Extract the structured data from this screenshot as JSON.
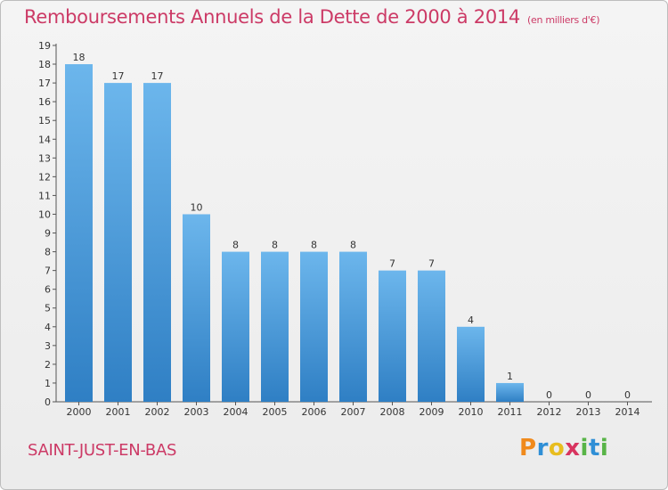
{
  "header": {
    "title": "Remboursements Annuels de la Dette de 2000 à 2014",
    "unit": "(en milliers d'€)"
  },
  "footer": {
    "commune": "SAINT-JUST-EN-BAS",
    "logo_letters": [
      "P",
      "r",
      "o",
      "x",
      "i",
      "t",
      "i"
    ],
    "logo_colors": [
      "#f08a1c",
      "#2f8fd6",
      "#e8bd1f",
      "#d8345f",
      "#58b447",
      "#2f8fd6",
      "#58b447"
    ]
  },
  "chart_data": {
    "type": "bar",
    "title": "Remboursements Annuels de la Dette de 2000 à 2014",
    "subtitle": "(en milliers d'€)",
    "categories": [
      "2000",
      "2001",
      "2002",
      "2003",
      "2004",
      "2005",
      "2006",
      "2007",
      "2008",
      "2009",
      "2010",
      "2011",
      "2012",
      "2013",
      "2014"
    ],
    "values": [
      18,
      17,
      17,
      10,
      8,
      8,
      8,
      8,
      7,
      7,
      4,
      1,
      0,
      0,
      0
    ],
    "data_labels": [
      "18",
      "17",
      "17",
      "10",
      "8",
      "8",
      "8",
      "8",
      "7",
      "7",
      "4",
      "1",
      "0",
      "0",
      "0"
    ],
    "ylim": [
      0,
      19
    ],
    "yticks": [
      "0",
      "1",
      "2",
      "3",
      "4",
      "5",
      "6",
      "7",
      "8",
      "9",
      "10",
      "11",
      "12",
      "13",
      "14",
      "15",
      "16",
      "17",
      "18",
      "19"
    ],
    "grid": false,
    "bar_color_top": "#6cb6ec",
    "bar_color_bottom": "#2f7fc4"
  }
}
